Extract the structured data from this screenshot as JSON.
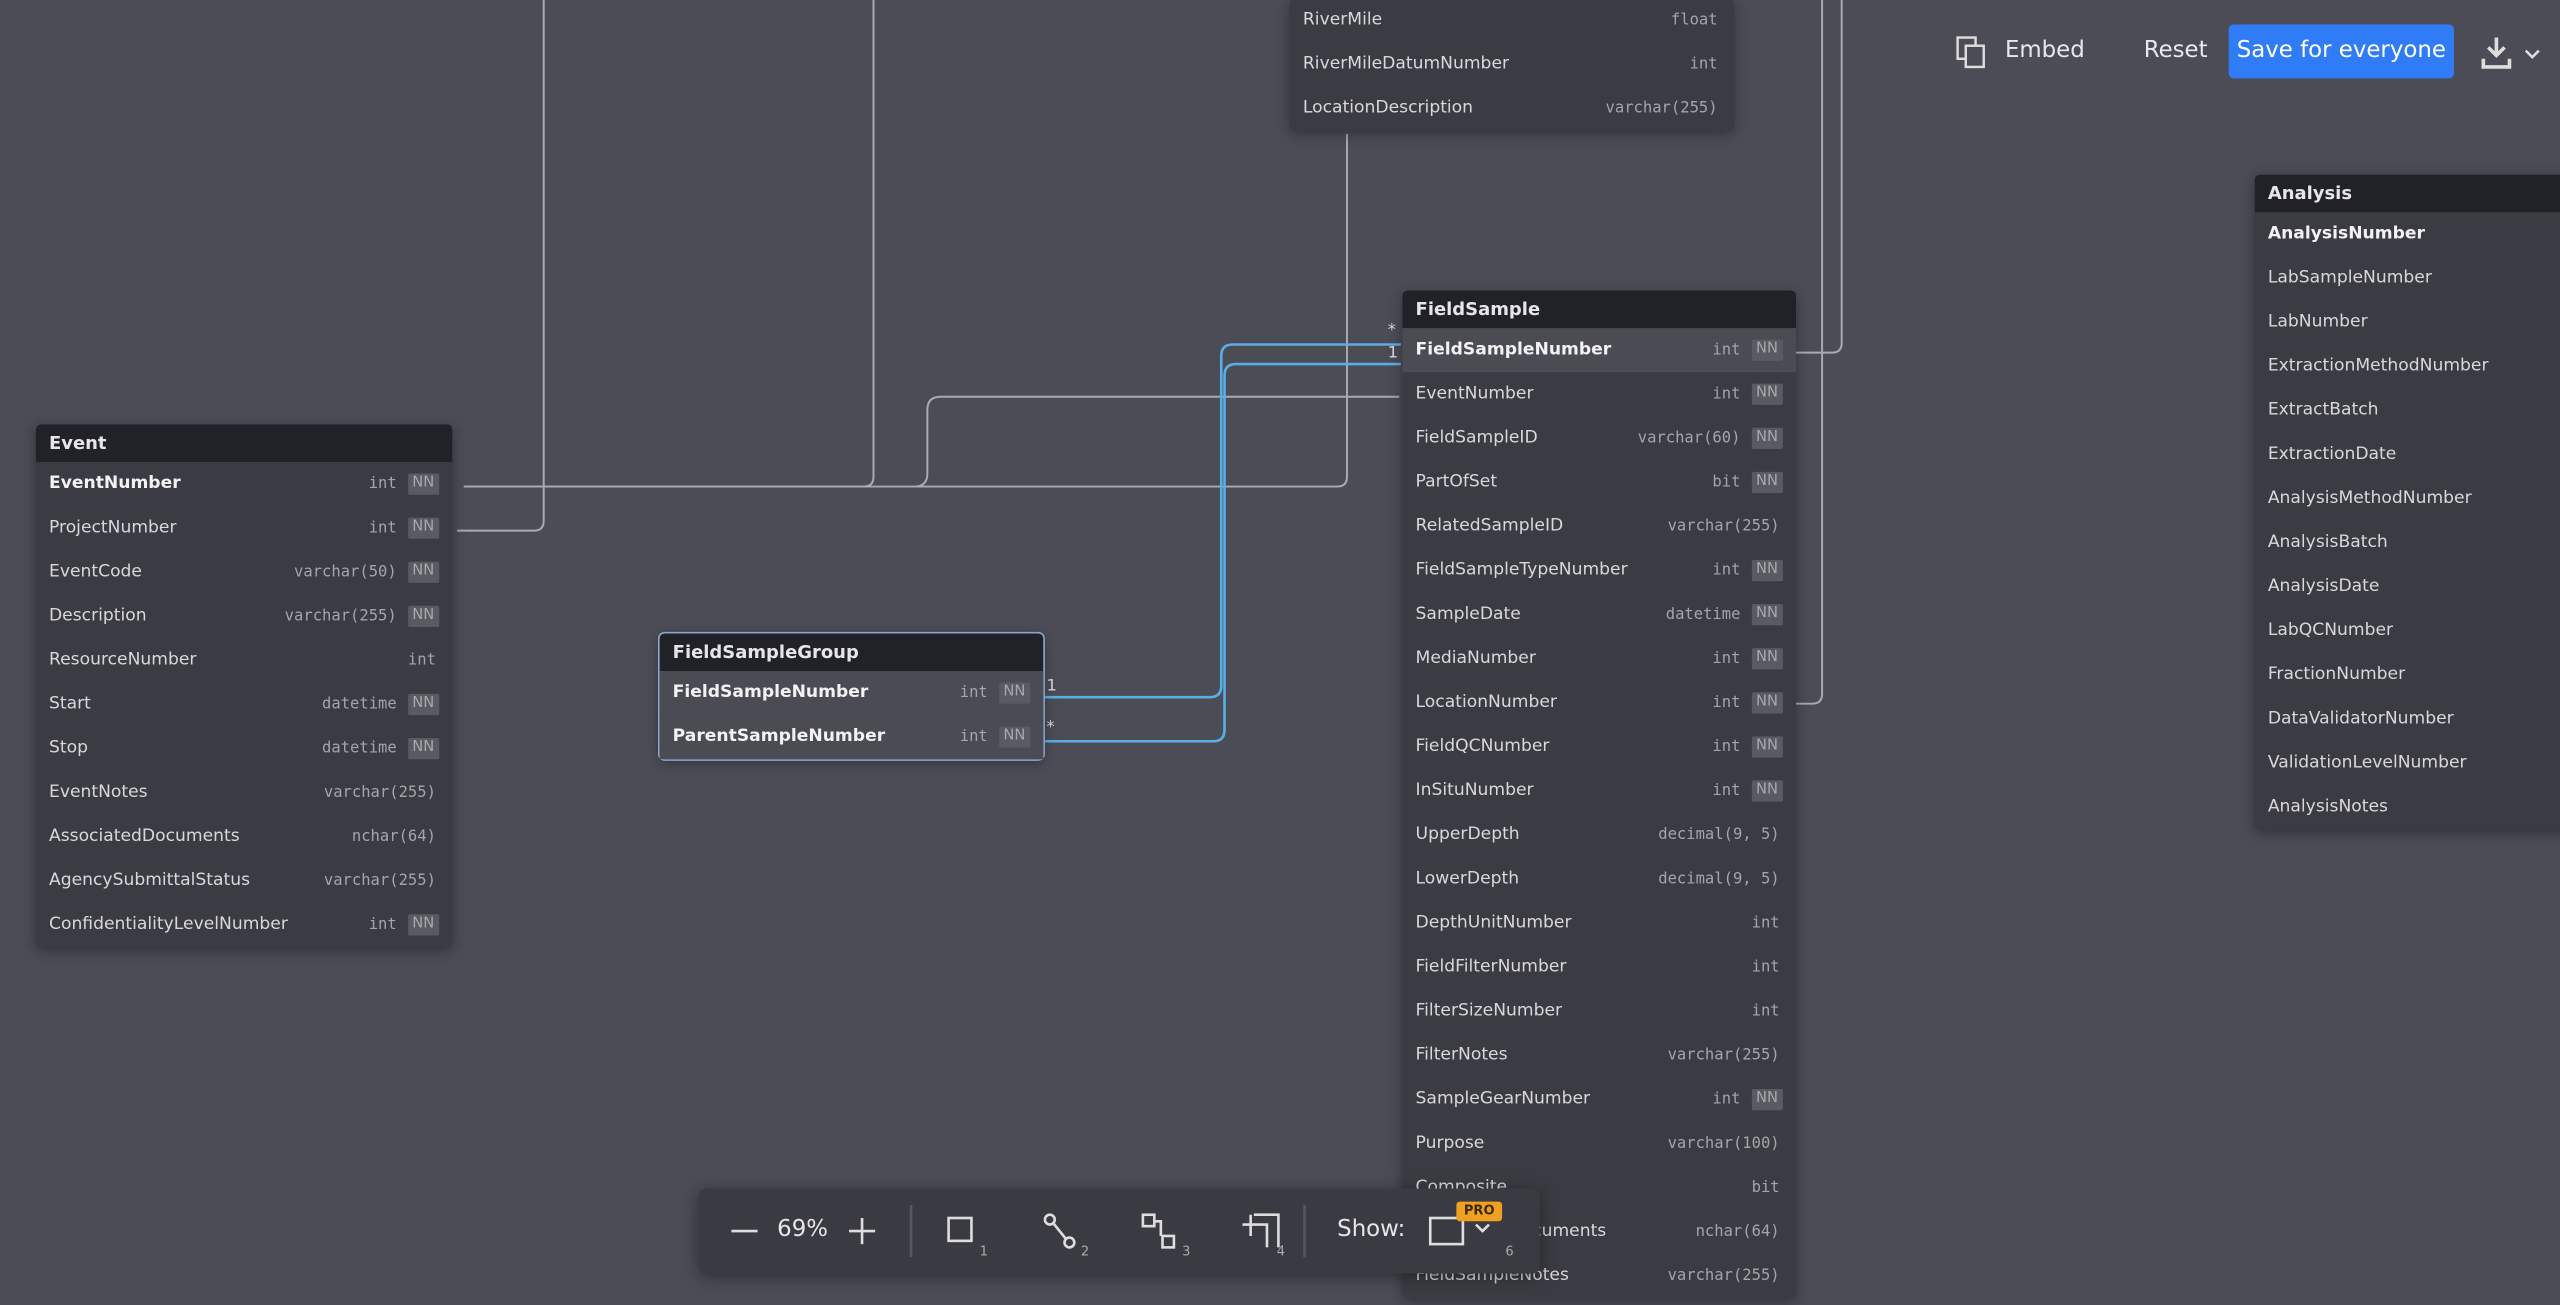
{
  "tables": [
    {
      "fields": [
        {
          "name": "RiverMile",
          "type": "float"
        },
        {
          "name": "RiverMileDatumNumber",
          "type": "int"
        },
        {
          "name": "LocationDescription",
          "type": "varchar(255)"
        }
      ]
    },
    {
      "name": "Event",
      "fields": [
        {
          "name": "EventNumber",
          "type": "int",
          "nn": "NN",
          "pk": true
        },
        {
          "name": "ProjectNumber",
          "type": "int",
          "nn": "NN"
        },
        {
          "name": "EventCode",
          "type": "varchar(50)",
          "nn": "NN"
        },
        {
          "name": "Description",
          "type": "varchar(255)",
          "nn": "NN"
        },
        {
          "name": "ResourceNumber",
          "type": "int"
        },
        {
          "name": "Start",
          "type": "datetime",
          "nn": "NN"
        },
        {
          "name": "Stop",
          "type": "datetime",
          "nn": "NN"
        },
        {
          "name": "EventNotes",
          "type": "varchar(255)"
        },
        {
          "name": "AssociatedDocuments",
          "type": "nchar(64)"
        },
        {
          "name": "AgencySubmittalStatus",
          "type": "varchar(255)"
        },
        {
          "name": "ConfidentialityLevelNumber",
          "type": "int",
          "nn": "NN"
        }
      ]
    },
    {
      "name": "FieldSampleGroup",
      "selected": true,
      "fields": [
        {
          "name": "FieldSampleNumber",
          "type": "int",
          "nn": "NN",
          "pk": true,
          "selected": true
        },
        {
          "name": "ParentSampleNumber",
          "type": "int",
          "nn": "NN",
          "pk": true,
          "selected": true
        }
      ]
    },
    {
      "name": "FieldSample",
      "fields": [
        {
          "name": "FieldSampleNumber",
          "type": "int",
          "nn": "NN",
          "pk": true,
          "selected": true
        },
        {
          "name": "EventNumber",
          "type": "int",
          "nn": "NN"
        },
        {
          "name": "FieldSampleID",
          "type": "varchar(60)",
          "nn": "NN"
        },
        {
          "name": "PartOfSet",
          "type": "bit",
          "nn": "NN"
        },
        {
          "name": "RelatedSampleID",
          "type": "varchar(255)"
        },
        {
          "name": "FieldSampleTypeNumber",
          "type": "int",
          "nn": "NN"
        },
        {
          "name": "SampleDate",
          "type": "datetime",
          "nn": "NN"
        },
        {
          "name": "MediaNumber",
          "type": "int",
          "nn": "NN"
        },
        {
          "name": "LocationNumber",
          "type": "int",
          "nn": "NN"
        },
        {
          "name": "FieldQCNumber",
          "type": "int",
          "nn": "NN"
        },
        {
          "name": "InSituNumber",
          "type": "int",
          "nn": "NN"
        },
        {
          "name": "UpperDepth",
          "type": "decimal(9, 5)"
        },
        {
          "name": "LowerDepth",
          "type": "decimal(9, 5)"
        },
        {
          "name": "DepthUnitNumber",
          "type": "int"
        },
        {
          "name": "FieldFilterNumber",
          "type": "int"
        },
        {
          "name": "FilterSizeNumber",
          "type": "int"
        },
        {
          "name": "FilterNotes",
          "type": "varchar(255)"
        },
        {
          "name": "SampleGearNumber",
          "type": "int",
          "nn": "NN"
        },
        {
          "name": "Purpose",
          "type": "varchar(100)"
        },
        {
          "name": "Composite",
          "type": "bit"
        },
        {
          "name": "AssociatedDocuments",
          "type": "nchar(64)"
        },
        {
          "name": "FieldSampleNotes",
          "type": "varchar(255)"
        }
      ]
    },
    {
      "name": "Analysis",
      "fields": [
        {
          "name": "AnalysisNumber",
          "pk": true
        },
        {
          "name": "LabSampleNumber"
        },
        {
          "name": "LabNumber"
        },
        {
          "name": "ExtractionMethodNumber"
        },
        {
          "name": "ExtractBatch"
        },
        {
          "name": "ExtractionDate"
        },
        {
          "name": "AnalysisMethodNumber"
        },
        {
          "name": "AnalysisBatch"
        },
        {
          "name": "AnalysisDate"
        },
        {
          "name": "LabQCNumber"
        },
        {
          "name": "FractionNumber"
        },
        {
          "name": "DataValidatorNumber"
        },
        {
          "name": "ValidationLevelNumber"
        },
        {
          "name": "AnalysisNotes"
        }
      ]
    }
  ],
  "relation_labels": [
    "1",
    "*",
    "*",
    "1"
  ],
  "header": {
    "embed": "Embed",
    "reset": "Reset",
    "save": "Save for everyone"
  },
  "toolbar": {
    "zoom": "69%",
    "shortcuts": [
      "1",
      "2",
      "3",
      "4",
      "6"
    ],
    "show": "Show:",
    "badge": "PRO"
  }
}
